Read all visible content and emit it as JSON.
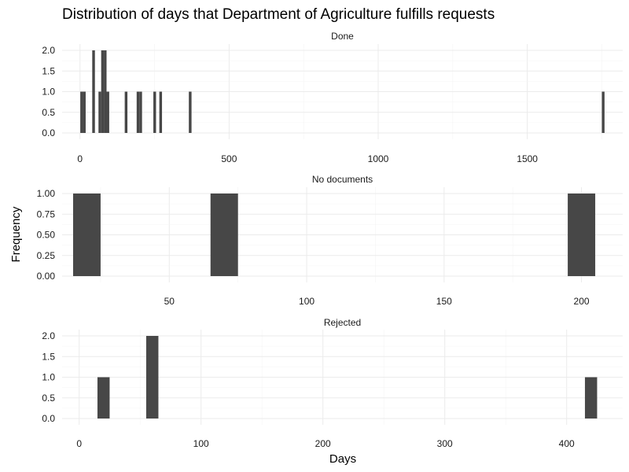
{
  "chart_data": {
    "type": "bar",
    "title": "Distribution of days that Department of Agriculture fulfills requests",
    "xlabel": "Days",
    "ylabel": "Frequency",
    "grid": true,
    "legend": "none",
    "bar_color": "#474747",
    "facets": [
      {
        "label": "Done",
        "xlim": [
          -60,
          1820
        ],
        "ylim": [
          0,
          2
        ],
        "x_ticks": [
          0,
          500,
          1000,
          1500
        ],
        "y_ticks": [
          "0.0",
          "0.5",
          "1.0",
          "1.5",
          "2.0"
        ],
        "bin_width": 9,
        "bins": [
          {
            "x": 1,
            "count": 1
          },
          {
            "x": 10,
            "count": 1
          },
          {
            "x": 41,
            "count": 2
          },
          {
            "x": 62,
            "count": 1
          },
          {
            "x": 71,
            "count": 2
          },
          {
            "x": 80,
            "count": 2
          },
          {
            "x": 89,
            "count": 1
          },
          {
            "x": 150,
            "count": 1
          },
          {
            "x": 190,
            "count": 1
          },
          {
            "x": 199,
            "count": 1
          },
          {
            "x": 246,
            "count": 1
          },
          {
            "x": 266,
            "count": 1
          },
          {
            "x": 365,
            "count": 1
          },
          {
            "x": 1750,
            "count": 1
          }
        ]
      },
      {
        "label": "No documents",
        "xlim": [
          11,
          215
        ],
        "ylim": [
          0,
          1
        ],
        "x_ticks": [
          50,
          100,
          150,
          200
        ],
        "y_ticks": [
          "0.00",
          "0.25",
          "0.50",
          "0.75",
          "1.00"
        ],
        "bin_width": 10,
        "bins": [
          {
            "x": 15,
            "count": 1
          },
          {
            "x": 65,
            "count": 1
          },
          {
            "x": 195,
            "count": 1
          }
        ]
      },
      {
        "label": "Rejected",
        "xlim": [
          -14,
          446
        ],
        "ylim": [
          0,
          2
        ],
        "x_ticks": [
          0,
          100,
          200,
          300,
          400
        ],
        "y_ticks": [
          "0.0",
          "0.5",
          "1.0",
          "1.5",
          "2.0"
        ],
        "bin_width": 10,
        "bins": [
          {
            "x": 15,
            "count": 1
          },
          {
            "x": 55,
            "count": 2
          },
          {
            "x": 415,
            "count": 1
          }
        ]
      }
    ]
  }
}
